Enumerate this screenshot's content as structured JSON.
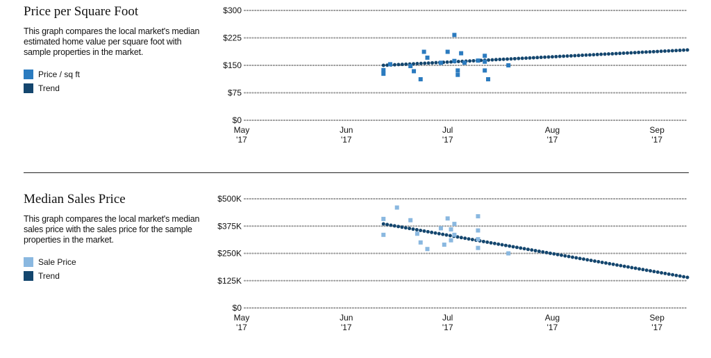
{
  "chart_data": [
    {
      "type": "scatter",
      "title": "Price per Square Foot",
      "description": "This graph compares the local market's median estimated home value per square foot with sample properties in the market.",
      "legend": [
        {
          "label": "Price / sq ft",
          "color": "#2b7bbf"
        },
        {
          "label": "Trend",
          "color": "#14466e"
        }
      ],
      "yticks": [
        "$0",
        "$75",
        "$150",
        "$225",
        "$300"
      ],
      "ytick_values": [
        0,
        75,
        150,
        225,
        300
      ],
      "ylim": [
        0,
        300
      ],
      "xticks": [
        {
          "month": "May",
          "year": "'17",
          "date": "2017-05-01"
        },
        {
          "month": "Jun",
          "year": "'17",
          "date": "2017-06-01"
        },
        {
          "month": "Jul",
          "year": "'17",
          "date": "2017-07-01"
        },
        {
          "month": "Aug",
          "year": "'17",
          "date": "2017-08-01"
        },
        {
          "month": "Sep",
          "year": "'17",
          "date": "2017-09-01"
        }
      ],
      "xlim": [
        "2017-05-01",
        "2017-09-10"
      ],
      "point_color": "#2b7bbf",
      "trend_color": "#14466e",
      "trend": {
        "start": {
          "x": "2017-06-12",
          "y": 150
        },
        "end": {
          "x": "2017-09-10",
          "y": 192
        }
      },
      "points": [
        {
          "x": "2017-06-12",
          "y": 127
        },
        {
          "x": "2017-06-12",
          "y": 137
        },
        {
          "x": "2017-06-14",
          "y": 153
        },
        {
          "x": "2017-06-20",
          "y": 148
        },
        {
          "x": "2017-06-21",
          "y": 134
        },
        {
          "x": "2017-06-23",
          "y": 112
        },
        {
          "x": "2017-06-24",
          "y": 187
        },
        {
          "x": "2017-06-25",
          "y": 171
        },
        {
          "x": "2017-06-29",
          "y": 157
        },
        {
          "x": "2017-07-01",
          "y": 187
        },
        {
          "x": "2017-07-03",
          "y": 162
        },
        {
          "x": "2017-07-03",
          "y": 233
        },
        {
          "x": "2017-07-04",
          "y": 136
        },
        {
          "x": "2017-07-04",
          "y": 124
        },
        {
          "x": "2017-07-05",
          "y": 183
        },
        {
          "x": "2017-07-06",
          "y": 157
        },
        {
          "x": "2017-07-10",
          "y": 163
        },
        {
          "x": "2017-07-12",
          "y": 176
        },
        {
          "x": "2017-07-12",
          "y": 160
        },
        {
          "x": "2017-07-12",
          "y": 136
        },
        {
          "x": "2017-07-13",
          "y": 112
        },
        {
          "x": "2017-07-19",
          "y": 150
        }
      ]
    },
    {
      "type": "scatter",
      "title": "Median Sales Price",
      "description": "This graph compares the local market's median sales price with the sales price for the sample properties in the market.",
      "legend": [
        {
          "label": "Sale Price",
          "color": "#8ab8e0"
        },
        {
          "label": "Trend",
          "color": "#14466e"
        }
      ],
      "yticks": [
        "$0",
        "$125K",
        "$250K",
        "$375K",
        "$500K"
      ],
      "ytick_values": [
        0,
        125000,
        250000,
        375000,
        500000
      ],
      "ylim": [
        0,
        500000
      ],
      "xticks": [
        {
          "month": "May",
          "year": "'17",
          "date": "2017-05-01"
        },
        {
          "month": "Jun",
          "year": "'17",
          "date": "2017-06-01"
        },
        {
          "month": "Jul",
          "year": "'17",
          "date": "2017-07-01"
        },
        {
          "month": "Aug",
          "year": "'17",
          "date": "2017-08-01"
        },
        {
          "month": "Sep",
          "year": "'17",
          "date": "2017-09-01"
        }
      ],
      "xlim": [
        "2017-05-01",
        "2017-09-10"
      ],
      "point_color": "#8ab8e0",
      "trend_color": "#14466e",
      "trend": {
        "start": {
          "x": "2017-06-12",
          "y": 385000
        },
        "end": {
          "x": "2017-09-10",
          "y": 140000
        }
      },
      "points": [
        {
          "x": "2017-06-12",
          "y": 408000
        },
        {
          "x": "2017-06-12",
          "y": 335000
        },
        {
          "x": "2017-06-16",
          "y": 460000
        },
        {
          "x": "2017-06-20",
          "y": 402000
        },
        {
          "x": "2017-06-22",
          "y": 340000
        },
        {
          "x": "2017-06-23",
          "y": 300000
        },
        {
          "x": "2017-06-25",
          "y": 270000
        },
        {
          "x": "2017-06-29",
          "y": 365000
        },
        {
          "x": "2017-06-30",
          "y": 290000
        },
        {
          "x": "2017-07-01",
          "y": 410000
        },
        {
          "x": "2017-07-02",
          "y": 360000
        },
        {
          "x": "2017-07-02",
          "y": 310000
        },
        {
          "x": "2017-07-03",
          "y": 385000
        },
        {
          "x": "2017-07-03",
          "y": 335000
        },
        {
          "x": "2017-07-10",
          "y": 420000
        },
        {
          "x": "2017-07-10",
          "y": 355000
        },
        {
          "x": "2017-07-10",
          "y": 315000
        },
        {
          "x": "2017-07-10",
          "y": 275000
        },
        {
          "x": "2017-07-19",
          "y": 250000
        }
      ]
    }
  ]
}
